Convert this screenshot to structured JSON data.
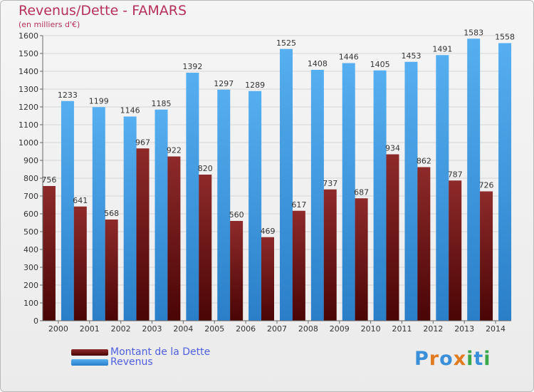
{
  "chart_data": {
    "type": "bar",
    "title": "Revenus/Dette - FAMARS",
    "subtitle": "(en milliers d'€)",
    "categories": [
      "2000",
      "2001",
      "2002",
      "2003",
      "2004",
      "2005",
      "2006",
      "2007",
      "2008",
      "2009",
      "2010",
      "2011",
      "2012",
      "2013",
      "2014"
    ],
    "series": [
      {
        "name": "Montant de la Dette",
        "color": "#7a1f1f",
        "values": [
          756,
          641,
          568,
          967,
          922,
          820,
          560,
          469,
          617,
          737,
          687,
          934,
          862,
          787,
          726
        ]
      },
      {
        "name": "Revenus",
        "color": "#4aa3e6",
        "values": [
          1233,
          1199,
          1146,
          1185,
          1392,
          1297,
          1289,
          1525,
          1408,
          1446,
          1405,
          1453,
          1491,
          1583,
          1558
        ]
      }
    ],
    "ylim": [
      0,
      1600
    ],
    "yticks": [
      0,
      100,
      200,
      300,
      400,
      500,
      600,
      700,
      800,
      900,
      1000,
      1100,
      1200,
      1300,
      1400,
      1500,
      1600
    ],
    "grid": true,
    "legend_position": "bottom-left"
  },
  "brand": {
    "text": "Proxiti",
    "letters": [
      {
        "ch": "P",
        "color": "#3a8fd9"
      },
      {
        "ch": "r",
        "color": "#e07b1f"
      },
      {
        "ch": "o",
        "color": "#3a8fd9"
      },
      {
        "ch": "x",
        "color": "#e07b1f"
      },
      {
        "ch": "i",
        "color": "#39a84a"
      },
      {
        "ch": "t",
        "color": "#3a8fd9"
      },
      {
        "ch": "i",
        "color": "#39a84a"
      }
    ]
  }
}
